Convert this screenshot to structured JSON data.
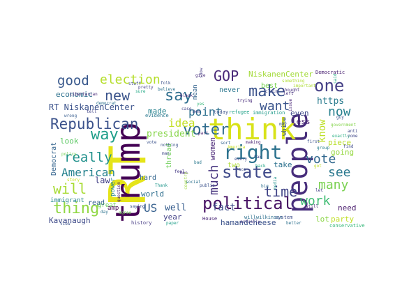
{
  "words": [
    {
      "text": "RT",
      "color": "#e5e419"
    },
    {
      "text": "people",
      "color": "#472d7b"
    },
    {
      "text": "think",
      "color": "#d8e219"
    },
    {
      "text": "trump",
      "color": "#440154"
    },
    {
      "text": "right",
      "color": "#2c728e"
    },
    {
      "text": "political",
      "color": "#471164"
    },
    {
      "text": "Republican",
      "color": "#3b528b"
    },
    {
      "text": "election",
      "color": "#b5de2b"
    },
    {
      "text": "state",
      "color": "#3e4989"
    },
    {
      "text": "thing",
      "color": "#90d743"
    },
    {
      "text": "say",
      "color": "#2e6e8e"
    },
    {
      "text": "make",
      "color": "#3b528b"
    },
    {
      "text": "one",
      "color": "#433e85"
    },
    {
      "text": "will",
      "color": "#a8db34"
    },
    {
      "text": "really",
      "color": "#21918c"
    },
    {
      "text": "voter",
      "color": "#2f6c8e"
    },
    {
      "text": "way",
      "color": "#1f9e89"
    },
    {
      "text": "vote",
      "color": "#31688e"
    },
    {
      "text": "time",
      "color": "#414487"
    },
    {
      "text": "new",
      "color": "#3a538b"
    },
    {
      "text": "good",
      "color": "#38588c"
    },
    {
      "text": "work",
      "color": "#3fbc73"
    },
    {
      "text": "see",
      "color": "#2a788e"
    },
    {
      "text": "much",
      "color": "#46337e"
    },
    {
      "text": "now",
      "color": "#27808e"
    },
    {
      "text": "many",
      "color": "#7ad151"
    },
    {
      "text": "want",
      "color": "#3a548c"
    },
    {
      "text": "GOP",
      "color": "#482878"
    },
    {
      "text": "point",
      "color": "#2d708e"
    },
    {
      "text": "American",
      "color": "#26828e"
    },
    {
      "text": "idea",
      "color": "#c2df23"
    },
    {
      "text": "know",
      "color": "#bddf26"
    },
    {
      "text": "US",
      "color": "#355f8d"
    },
    {
      "text": "RT NiskanenCenter",
      "color": "#3b528b"
    },
    {
      "text": "economic",
      "color": "#2d718e"
    },
    {
      "text": "https",
      "color": "#297b8e"
    },
    {
      "text": "president",
      "color": "#86d549"
    },
    {
      "text": "going",
      "color": "#95d840"
    },
    {
      "text": "piece",
      "color": "#b8de29"
    },
    {
      "text": "hamandcheese",
      "color": "#3b528b"
    },
    {
      "text": "well",
      "color": "#365d8d"
    },
    {
      "text": "fact",
      "color": "#3e4c8a"
    },
    {
      "text": "need",
      "color": "#481a6c"
    },
    {
      "text": "NiskanenCenter",
      "color": "#a2da37"
    },
    {
      "text": "look",
      "color": "#5cc863"
    },
    {
      "text": "law",
      "color": "#424086"
    },
    {
      "text": "made",
      "color": "#26828e"
    },
    {
      "text": "women",
      "color": "#482576"
    },
    {
      "text": "lot",
      "color": "#8bd646"
    },
    {
      "text": "party",
      "color": "#c0df25"
    },
    {
      "text": "Kavanaugh",
      "color": "#3e4a89"
    },
    {
      "text": "year",
      "color": "#424186"
    },
    {
      "text": "world",
      "color": "#2e6e8e"
    },
    {
      "text": "read",
      "color": "#34618d"
    },
    {
      "text": "hard",
      "color": "#32658e"
    },
    {
      "text": "great",
      "color": "#67cc5c"
    },
    {
      "text": "Democrat",
      "color": "#33638d"
    },
    {
      "text": "thread",
      "color": "#6ece58"
    },
    {
      "text": "immigrant",
      "color": "#25848e"
    },
    {
      "text": "take",
      "color": "#2c718e"
    },
    {
      "text": "two",
      "color": "#addc30"
    },
    {
      "text": "even",
      "color": "#3f4889"
    },
    {
      "text": "less",
      "color": "#482173"
    },
    {
      "text": "white",
      "color": "#3b528b"
    },
    {
      "text": "never",
      "color": "#2a768e"
    },
    {
      "text": "best",
      "color": "#77d153"
    },
    {
      "text": "mean",
      "color": "#33638d"
    },
    {
      "text": "power",
      "color": "#24868e"
    },
    {
      "text": "amp",
      "color": "#440154"
    },
    {
      "text": "immigration",
      "color": "#1f9a8a"
    },
    {
      "text": "refugee",
      "color": "#1fa188"
    },
    {
      "text": "today",
      "color": "#3b528b"
    },
    {
      "text": "willwilkinson",
      "color": "#2d708e"
    },
    {
      "text": "Democratic",
      "color": "#482071"
    },
    {
      "text": "evidence",
      "color": "#2a788e"
    },
    {
      "text": "history",
      "color": "#443a83"
    },
    {
      "text": "House",
      "color": "#482475"
    },
    {
      "text": "system",
      "color": "#3d4e8a"
    },
    {
      "text": "conservative",
      "color": "#35b779"
    },
    {
      "text": "policy",
      "color": "#73d056"
    },
    {
      "text": "claim",
      "color": "#404688"
    },
    {
      "text": "story",
      "color": "#cae11f"
    },
    {
      "text": "question",
      "color": "#48186a"
    },
    {
      "text": "men",
      "color": "#46307e"
    },
    {
      "text": "country",
      "color": "#9dd93b"
    },
    {
      "text": "Thank",
      "color": "#1f968b"
    },
    {
      "text": "race",
      "color": "#3d4d8a"
    },
    {
      "text": "bad",
      "color": "#2a788e"
    },
    {
      "text": "back",
      "color": "#21a685"
    },
    {
      "text": "case",
      "color": "#414287"
    },
    {
      "text": "got",
      "color": "#bddf26"
    },
    {
      "text": "first",
      "color": "#3b528b"
    },
    {
      "text": "tell",
      "color": "#404588"
    },
    {
      "text": "group",
      "color": "#277f8e"
    },
    {
      "text": "find",
      "color": "#3e4a89"
    },
    {
      "text": "still",
      "color": "#482878"
    },
    {
      "text": "better",
      "color": "#2d708e"
    },
    {
      "text": "actually",
      "color": "#453781"
    },
    {
      "text": "media",
      "color": "#20928c"
    },
    {
      "text": "Dem",
      "color": "#404588"
    },
    {
      "text": "social",
      "color": "#2d718e"
    },
    {
      "text": "feel",
      "color": "#443983"
    },
    {
      "text": "important",
      "color": "#addc30"
    },
    {
      "text": "something",
      "color": "#b0dd2f"
    },
    {
      "text": "issue",
      "color": "#482576"
    },
    {
      "text": "left",
      "color": "#46327e"
    },
    {
      "text": "show",
      "color": "#443b84"
    },
    {
      "text": "public",
      "color": "#3b528b"
    },
    {
      "text": "every",
      "color": "#3e4a89"
    },
    {
      "text": "day",
      "color": "#2c728e"
    },
    {
      "text": "man",
      "color": "#3f4788"
    },
    {
      "text": "let",
      "color": "#423f85"
    },
    {
      "text": "government",
      "color": "#84d44b"
    },
    {
      "text": "pretty",
      "color": "#433d84"
    },
    {
      "text": "thought",
      "color": "#46307e"
    },
    {
      "text": "Libertarian",
      "color": "#482979"
    },
    {
      "text": "wrong",
      "color": "#365c8d"
    },
    {
      "text": "sure",
      "color": "#22a884"
    },
    {
      "text": "part",
      "color": "#481d6f"
    },
    {
      "text": "big",
      "color": "#2e6f8e"
    },
    {
      "text": "may",
      "color": "#3b528b"
    },
    {
      "text": "said",
      "color": "#25ab82"
    },
    {
      "text": "trying",
      "color": "#472a7a"
    },
    {
      "text": "making",
      "color": "#482475"
    },
    {
      "text": "anti",
      "color": "#3e4989"
    },
    {
      "text": "exactly",
      "color": "#26ad81"
    },
    {
      "text": "come",
      "color": "#3f4788"
    },
    {
      "text": "guy",
      "color": "#3b528b"
    },
    {
      "text": "black",
      "color": "#482374"
    },
    {
      "text": "folk",
      "color": "#3b528b"
    },
    {
      "text": "stuff",
      "color": "#3e4989"
    },
    {
      "text": "believe",
      "color": "#2d718e"
    },
    {
      "text": "agree",
      "color": "#70cf57"
    },
    {
      "text": "saying",
      "color": "#3b528b"
    },
    {
      "text": "view",
      "color": "#3b528b"
    },
    {
      "text": "paper",
      "color": "#1f9f88"
    },
    {
      "text": "nothing",
      "color": "#3b528b"
    },
    {
      "text": "America",
      "color": "#c8e020"
    },
    {
      "text": "democrat",
      "color": "#2d718e"
    },
    {
      "text": "vote",
      "color": "#3b528b"
    },
    {
      "text": "tax",
      "color": "#414487"
    },
    {
      "text": "give",
      "color": "#472d7b"
    },
    {
      "text": "sort",
      "color": "#33638d"
    },
    {
      "text": "yes",
      "color": "#35b779"
    },
    {
      "text": "keep",
      "color": "#3b528b"
    }
  ]
}
